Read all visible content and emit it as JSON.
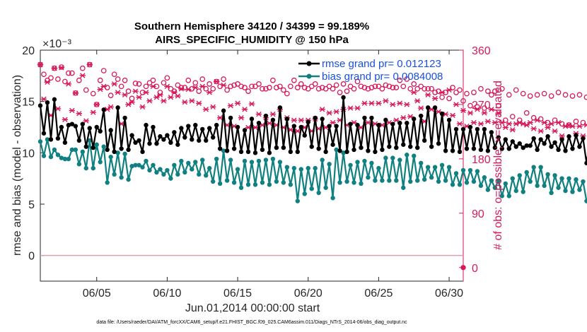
{
  "chart_data": {
    "type": "line",
    "title": "Southern Hemisphere 34120 / 34399 = 99.189%",
    "subtitle": "AIRS_SPECIFIC_HUMIDITY @ 150 hPa",
    "xlabel": "Jun.01,2014 00:00:00 start",
    "ylabel": "rmse and bias (model - observation)",
    "ylabel_right": "# of obs: o=possible; ×=evaluated",
    "y_exponent_label": "×10⁻³",
    "xlim": [
      1,
      31
    ],
    "ylim": [
      -2.5,
      20
    ],
    "ylim_right": [
      -22.5,
      360
    ],
    "x_ticks": [
      5,
      10,
      15,
      20,
      25,
      30
    ],
    "x_tick_labels": [
      "06/05",
      "06/10",
      "06/15",
      "06/20",
      "06/25",
      "06/30"
    ],
    "y_ticks": [
      0,
      5,
      10,
      15,
      20
    ],
    "y_tick_labels": [
      "0",
      "5",
      "10",
      "15",
      "20"
    ],
    "y_right_ticks": [
      0,
      90,
      180,
      270,
      360
    ],
    "y_right_tick_labels": [
      "0",
      "90",
      "180",
      "270",
      "360"
    ],
    "legend": [
      "rmse grand pr= 0.012123",
      "bias grand pr= 0.0084008"
    ],
    "footnote": "data file: /Users/raeder/DAI/ATM_forcXX/CAM6_setup/f.e21.FHIST_BGC.f09_025.CAM6assim.011/Diags_NTrS_2014-06/obs_diag_output.nc",
    "colors": {
      "rmse": "#000000",
      "bias": "#108080",
      "obs": "#d6195b",
      "zero_line": "#d9a0aa"
    },
    "series": [
      {
        "name": "rmse",
        "x_start": 1.0,
        "x_step": 0.25,
        "values": [
          14.6,
          11.9,
          14.9,
          11.3,
          15.2,
          11.4,
          12.5,
          11.0,
          12.7,
          12.8,
          12.6,
          11.2,
          12.8,
          10.6,
          12.4,
          10.5,
          12.5,
          12.1,
          14.2,
          10.3,
          12.2,
          10.1,
          14.4,
          10.4,
          13.4,
          10.3,
          11.7,
          11.0,
          11.2,
          10.1,
          12.7,
          10.9,
          12.5,
          10.9,
          11.6,
          11.3,
          11.7,
          11.0,
          12.0,
          10.8,
          12.4,
          11.5,
          12.6,
          11.3,
          12.7,
          11.2,
          12.3,
          11.2,
          12.4,
          11.5,
          12.7,
          10.4,
          14.1,
          10.2,
          13.4,
          10.4,
          12.5,
          10.1,
          12.2,
          10.1,
          13.3,
          10.0,
          12.9,
          10.3,
          13.6,
          10.0,
          13.2,
          10.5,
          14.4,
          10.5,
          13.3,
          10.1,
          12.6,
          10.1,
          12.5,
          11.7,
          13.0,
          10.6,
          13.4,
          10.4,
          13.3,
          10.1,
          12.6,
          10.8,
          12.6,
          10.2,
          15.4,
          10.1,
          12.8,
          10.3,
          12.7,
          10.5,
          13.4,
          10.2,
          13.4,
          10.1,
          12.7,
          10.3,
          13.2,
          10.6,
          12.8,
          10.5,
          12.9,
          10.8,
          12.9,
          10.6,
          13.3,
          10.5,
          13.6,
          11.2,
          14.4,
          10.6,
          14.4,
          10.9,
          13.8,
          10.2,
          13.2,
          10.2,
          12.3,
          10.1,
          12.3,
          10.4,
          12.5,
          10.4,
          12.3,
          10.3,
          12.3,
          10.2,
          12.0,
          10.5,
          11.5,
          10.4,
          11.3,
          10.4,
          11.1,
          10.6,
          10.9,
          10.5,
          10.7,
          10.7,
          11.4,
          10.3,
          11.3,
          10.9,
          11.6,
          10.6,
          11.0,
          10.3,
          11.3,
          10.2,
          11.6,
          10.4,
          11.7,
          10.6,
          11.4,
          9.0,
          11.3,
          8.0
        ]
      },
      {
        "name": "bias",
        "x_start": 1.0,
        "x_step": 0.25,
        "values": [
          11.1,
          9.7,
          11.3,
          9.6,
          10.3,
          9.8,
          9.5,
          9.4,
          9.4,
          10.3,
          10.3,
          8.9,
          10.1,
          8.5,
          11.2,
          8.5,
          10.8,
          9.1,
          10.6,
          7.1,
          9.6,
          7.9,
          10.0,
          7.6,
          9.9,
          7.4,
          8.7,
          8.8,
          8.8,
          8.6,
          9.2,
          8.3,
          8.8,
          8.1,
          8.4,
          7.9,
          8.3,
          7.5,
          8.8,
          7.9,
          9.2,
          8.1,
          9.0,
          8.4,
          9.1,
          7.9,
          9.3,
          7.8,
          8.5,
          7.2,
          9.4,
          7.0,
          10.2,
          7.3,
          9.3,
          7.1,
          8.4,
          6.6,
          9.2,
          6.9,
          9.1,
          6.9,
          9.2,
          7.1,
          9.3,
          6.9,
          9.4,
          7.2,
          9.1,
          7.1,
          8.6,
          6.9,
          8.5,
          5.3,
          8.4,
          6.0,
          8.5,
          6.5,
          8.5,
          6.1,
          9.3,
          6.6,
          8.9,
          5.6,
          10.3,
          7.1,
          10.0,
          7.2,
          8.8,
          7.1,
          9.1,
          7.0,
          9.2,
          7.6,
          9.0,
          7.3,
          8.5,
          7.3,
          9.5,
          7.3,
          9.5,
          7.3,
          9.3,
          6.6,
          9.8,
          7.2,
          9.7,
          7.3,
          9.0,
          7.4,
          8.6,
          7.6,
          8.6,
          7.2,
          8.8,
          7.3,
          8.6,
          6.9,
          8.0,
          6.9,
          8.3,
          7.1,
          8.3,
          7.2,
          8.2,
          6.8,
          7.6,
          6.4,
          7.3,
          6.6,
          7.3,
          5.8,
          7.0,
          5.8,
          7.5,
          6.3,
          7.8,
          6.2,
          8.1,
          7.2,
          8.6,
          6.8,
          8.6,
          6.8,
          7.9,
          6.1,
          7.8,
          6.6,
          7.5,
          6.3,
          7.5,
          6.2,
          7.4,
          6.4,
          7.2,
          5.3
        ]
      },
      {
        "name": "obs possible",
        "axis": "right",
        "x_start": 1.0,
        "x_step": 0.25,
        "values": [
          336,
          320,
          310,
          314,
          330,
          312,
          332,
          308,
          322,
          322,
          289,
          310,
          330,
          294,
          336,
          288,
          270,
          310,
          326,
          298,
          285,
          320,
          312,
          300,
          310,
          292,
          280,
          305,
          304,
          290,
          300,
          306,
          310,
          300,
          290,
          306,
          314,
          296,
          292,
          302,
          298,
          298,
          310,
          296,
          306,
          292,
          312,
          296,
          304,
          296,
          308,
          300,
          312,
          294,
          300,
          302,
          304,
          300,
          298,
          292,
          300,
          300,
          304,
          296,
          296,
          298,
          310,
          298,
          300,
          294,
          288,
          300,
          310,
          298,
          304,
          298,
          296,
          300,
          304,
          296,
          298,
          296,
          300,
          296,
          302,
          290,
          304,
          292,
          300,
          296,
          308,
          300,
          298,
          296,
          298,
          300,
          300,
          296,
          302,
          300,
          298,
          298,
          310,
          300,
          312,
          296,
          304,
          296,
          300,
          296,
          296,
          296,
          290,
          292,
          282,
          290,
          280,
          298,
          290,
          294,
          276,
          288,
          268,
          290,
          266,
          296,
          264,
          292,
          286,
          292,
          268,
          296,
          244,
          286,
          250,
          294,
          244,
          288,
          256,
          284,
          248,
          286,
          246,
          288,
          240,
          284,
          244,
          290,
          238,
          286,
          236,
          284,
          242,
          286,
          240,
          282,
          244,
          282,
          240,
          280
        ]
      },
      {
        "name": "obs evaluated",
        "axis": "right",
        "x_start": 1.0,
        "x_step": 0.25,
        "values": [
          336,
          279,
          307,
          252,
          330,
          263,
          331,
          245,
          304,
          260,
          289,
          255,
          318,
          243,
          336,
          257,
          270,
          295,
          300,
          262,
          266,
          304,
          290,
          238,
          286,
          270,
          274,
          292,
          282,
          266,
          290,
          276,
          300,
          282,
          286,
          276,
          300,
          282,
          290,
          284,
          296,
          274,
          295,
          276,
          298,
          272,
          300,
          262,
          290,
          266,
          308,
          248,
          302,
          236,
          268,
          234,
          272,
          248,
          262,
          232,
          271,
          232,
          254,
          236,
          248,
          239,
          254,
          236,
          262,
          232,
          248,
          228,
          244,
          226,
          244,
          232,
          244,
          226,
          246,
          230,
          262,
          232,
          256,
          240,
          258,
          244,
          262,
          236,
          264,
          240,
          264,
          232,
          272,
          240,
          272,
          238,
          272,
          236,
          276,
          240,
          270,
          244,
          272,
          248,
          270,
          250,
          290,
          276,
          264,
          242,
          286,
          262,
          280,
          258,
          290,
          254,
          294,
          252,
          270,
          238,
          260,
          234,
          256,
          240,
          262,
          238,
          256,
          242,
          262,
          240,
          256,
          240,
          232,
          238,
          228,
          238,
          240,
          238,
          236,
          240,
          230,
          244,
          226,
          240,
          232,
          238,
          226,
          240,
          218,
          234,
          236,
          234,
          222,
          234,
          218,
          236,
          236,
          238,
          236,
          240
        ]
      }
    ]
  }
}
